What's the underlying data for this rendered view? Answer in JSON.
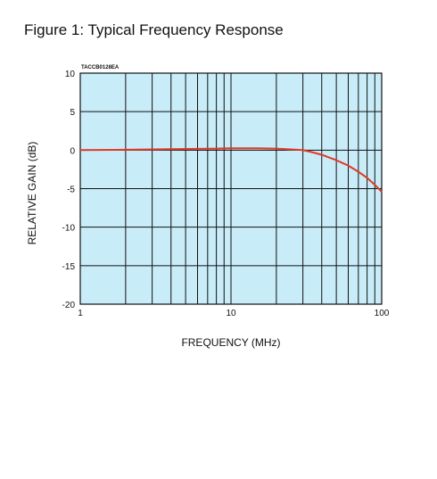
{
  "figure_title": "Figure 1: Typical Frequency Response",
  "chart_data": {
    "type": "line",
    "title": "Figure 1: Typical Frequency Response",
    "annotation": "TACCB0128EA",
    "xlabel": "FREQUENCY (MHz)",
    "ylabel": "RELATIVE GAIN (dB)",
    "xscale": "log",
    "xlim": [
      1,
      100
    ],
    "ylim": [
      -20,
      10
    ],
    "xticks": [
      1,
      10,
      100
    ],
    "yticks": [
      10,
      5,
      0,
      -5,
      -10,
      -15,
      -20
    ],
    "grid": true,
    "colors": {
      "background": "#c9ecf9",
      "line": "#e03a26",
      "grid": "#111111"
    },
    "series": [
      {
        "x": [
          1,
          2,
          3,
          5,
          8,
          10,
          15,
          20,
          25,
          30,
          35,
          40,
          50,
          60,
          70,
          80,
          90,
          100
        ],
        "y": [
          0,
          0.05,
          0.1,
          0.15,
          0.2,
          0.25,
          0.25,
          0.2,
          0.1,
          0,
          -0.3,
          -0.6,
          -1.3,
          -2.0,
          -2.8,
          -3.6,
          -4.5,
          -5.4
        ]
      }
    ]
  }
}
